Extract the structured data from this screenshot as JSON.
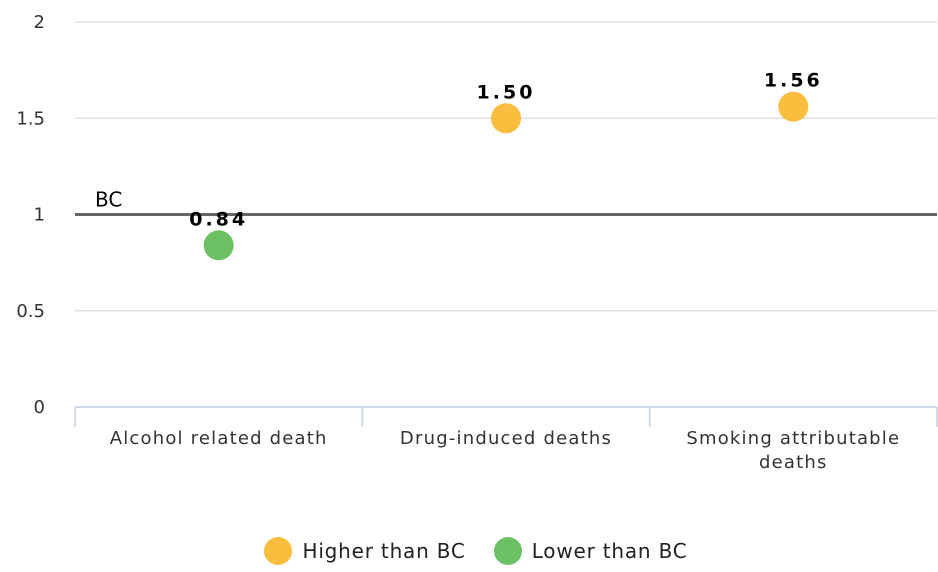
{
  "chart_data": {
    "type": "scatter",
    "categories": [
      "Alcohol related death",
      "Drug-induced deaths",
      "Smoking attributable deaths"
    ],
    "category_lines": [
      [
        "Alcohol related death"
      ],
      [
        "Drug-induced deaths"
      ],
      [
        "Smoking attributable",
        "deaths"
      ]
    ],
    "values": [
      0.84,
      1.5,
      1.56
    ],
    "value_labels": [
      "0.84",
      "1.50",
      "1.56"
    ],
    "groups": [
      "Lower than BC",
      "Higher than BC",
      "Higher than BC"
    ],
    "ylim": [
      0,
      2
    ],
    "yticks": [
      0,
      0.5,
      1,
      1.5,
      2
    ],
    "ytick_labels": [
      "0",
      "0.5",
      "1",
      "1.5",
      "2"
    ],
    "reference_line": {
      "value": 1,
      "label": "BC"
    },
    "grid": true,
    "legend_position": "bottom",
    "legend": [
      {
        "label": "Higher than BC",
        "color": "#fbbd3d"
      },
      {
        "label": "Lower than BC",
        "color": "#6cc064"
      }
    ],
    "colors": {
      "Higher than BC": "#fbbd3d",
      "Lower than BC": "#6cc064",
      "grid": "#e0e0e0",
      "axis": "#cfdbe8",
      "reference_line": "#666666"
    }
  }
}
